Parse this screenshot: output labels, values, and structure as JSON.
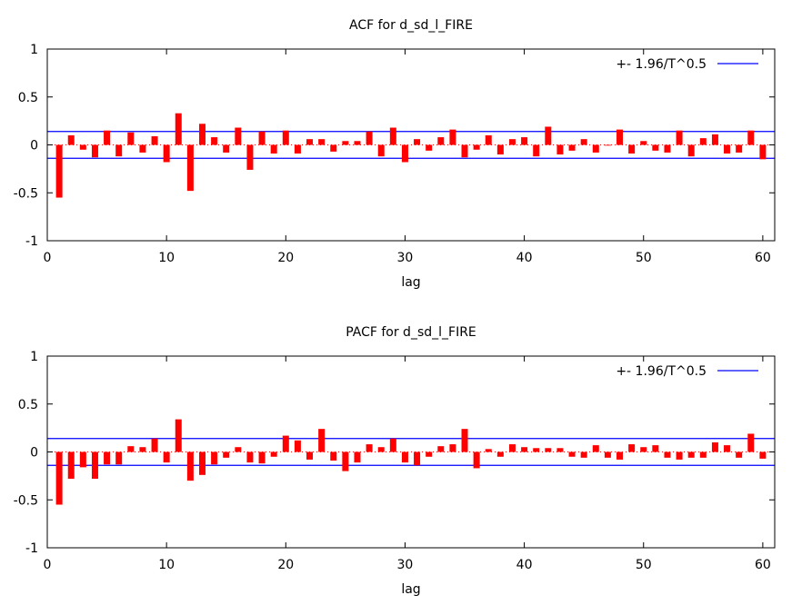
{
  "chart_data": [
    {
      "type": "bar",
      "title": "ACF for d_sd_l_FIRE",
      "xlabel": "lag",
      "ylabel": "",
      "xlim": [
        0,
        61
      ],
      "ylim": [
        -1,
        1
      ],
      "x_ticks": [
        0,
        10,
        20,
        30,
        40,
        50,
        60
      ],
      "x_tick_labels": [
        "0",
        "10",
        "20",
        "30",
        "40",
        "50",
        "60"
      ],
      "y_ticks": [
        -1,
        -0.5,
        0,
        0.5,
        1
      ],
      "y_tick_labels": [
        "-1",
        "-0.5",
        "0",
        "0.5",
        "1"
      ],
      "grid": false,
      "legend_position": "top-right",
      "legend_label": "+- 1.96/T^0.5",
      "confidence_band": 0.14,
      "bar_color": "#ff0000",
      "band_color": "#0000ff",
      "x": [
        1,
        2,
        3,
        4,
        5,
        6,
        7,
        8,
        9,
        10,
        11,
        12,
        13,
        14,
        15,
        16,
        17,
        18,
        19,
        20,
        21,
        22,
        23,
        24,
        25,
        26,
        27,
        28,
        29,
        30,
        31,
        32,
        33,
        34,
        35,
        36,
        37,
        38,
        39,
        40,
        41,
        42,
        43,
        44,
        45,
        46,
        47,
        48,
        49,
        50,
        51,
        52,
        53,
        54,
        55,
        56,
        57,
        58,
        59,
        60
      ],
      "values": [
        -0.55,
        0.1,
        -0.05,
        -0.13,
        0.15,
        -0.12,
        0.13,
        -0.08,
        0.09,
        -0.18,
        0.33,
        -0.48,
        0.22,
        0.08,
        -0.08,
        0.18,
        -0.26,
        0.14,
        -0.09,
        0.15,
        -0.09,
        0.06,
        0.06,
        -0.07,
        0.04,
        0.04,
        0.14,
        -0.12,
        0.18,
        -0.18,
        0.06,
        -0.06,
        0.08,
        0.16,
        -0.13,
        -0.05,
        0.1,
        -0.1,
        0.06,
        0.08,
        -0.12,
        0.19,
        -0.1,
        -0.06,
        0.06,
        -0.08,
        0.0,
        0.16,
        -0.09,
        0.04,
        -0.06,
        -0.08,
        0.15,
        -0.12,
        0.07,
        0.11,
        -0.09,
        -0.08,
        0.15,
        -0.15
      ]
    },
    {
      "type": "bar",
      "title": "PACF for d_sd_l_FIRE",
      "xlabel": "lag",
      "ylabel": "",
      "xlim": [
        0,
        61
      ],
      "ylim": [
        -1,
        1
      ],
      "x_ticks": [
        0,
        10,
        20,
        30,
        40,
        50,
        60
      ],
      "x_tick_labels": [
        "0",
        "10",
        "20",
        "30",
        "40",
        "50",
        "60"
      ],
      "y_ticks": [
        -1,
        -0.5,
        0,
        0.5,
        1
      ],
      "y_tick_labels": [
        "-1",
        "-0.5",
        "0",
        "0.5",
        "1"
      ],
      "grid": false,
      "legend_position": "top-right",
      "legend_label": "+- 1.96/T^0.5",
      "confidence_band": 0.14,
      "bar_color": "#ff0000",
      "band_color": "#0000ff",
      "x": [
        1,
        2,
        3,
        4,
        5,
        6,
        7,
        8,
        9,
        10,
        11,
        12,
        13,
        14,
        15,
        16,
        17,
        18,
        19,
        20,
        21,
        22,
        23,
        24,
        25,
        26,
        27,
        28,
        29,
        30,
        31,
        32,
        33,
        34,
        35,
        36,
        37,
        38,
        39,
        40,
        41,
        42,
        43,
        44,
        45,
        46,
        47,
        48,
        49,
        50,
        51,
        52,
        53,
        54,
        55,
        56,
        57,
        58,
        59,
        60
      ],
      "values": [
        -0.55,
        -0.28,
        -0.16,
        -0.28,
        -0.13,
        -0.13,
        0.06,
        0.05,
        0.14,
        -0.11,
        0.34,
        -0.3,
        -0.24,
        -0.13,
        -0.06,
        0.05,
        -0.11,
        -0.12,
        -0.05,
        0.17,
        0.12,
        -0.08,
        0.24,
        -0.09,
        -0.2,
        -0.11,
        0.08,
        0.05,
        0.14,
        -0.11,
        -0.14,
        -0.05,
        0.06,
        0.08,
        0.24,
        -0.17,
        0.03,
        -0.05,
        0.08,
        0.05,
        0.04,
        0.04,
        0.04,
        -0.05,
        -0.06,
        0.07,
        -0.06,
        -0.08,
        0.08,
        0.05,
        0.07,
        -0.06,
        -0.08,
        -0.06,
        -0.06,
        0.1,
        0.07,
        -0.06,
        0.19,
        -0.07
      ]
    }
  ]
}
